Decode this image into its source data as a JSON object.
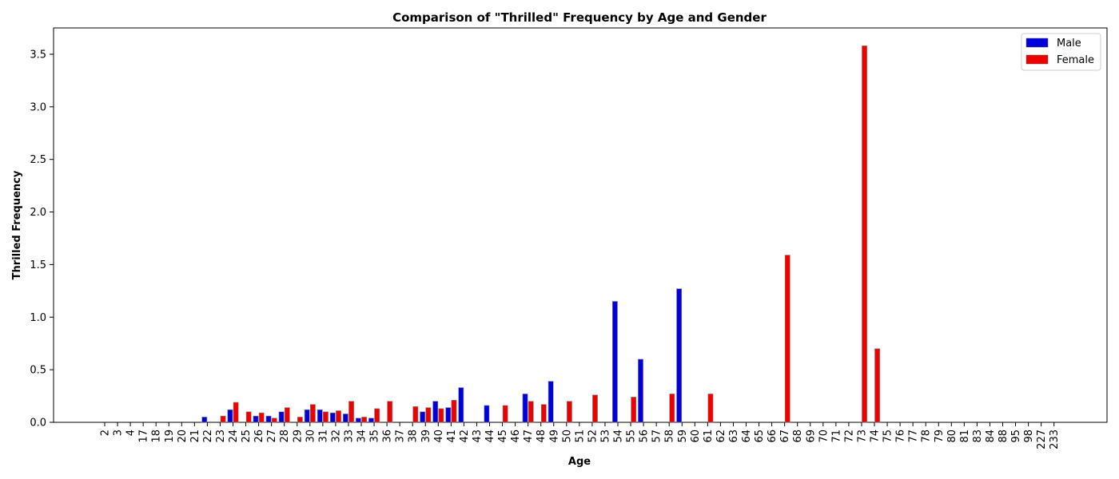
{
  "chart_data": {
    "type": "bar",
    "title": "Comparison of \"Thrilled\" Frequency by Age and Gender",
    "xlabel": "Age",
    "ylabel": "Thrilled Frequency",
    "ylim": [
      0,
      3.75
    ],
    "yticks": [
      "0.0",
      "0.5",
      "1.0",
      "1.5",
      "2.0",
      "2.5",
      "3.0",
      "3.5"
    ],
    "legend_position": "top-right",
    "categories": [
      "2",
      "3",
      "4",
      "17",
      "18",
      "19",
      "20",
      "21",
      "22",
      "23",
      "24",
      "25",
      "26",
      "27",
      "28",
      "29",
      "30",
      "31",
      "32",
      "33",
      "34",
      "35",
      "36",
      "37",
      "38",
      "39",
      "40",
      "41",
      "42",
      "43",
      "44",
      "45",
      "46",
      "47",
      "48",
      "49",
      "50",
      "51",
      "52",
      "53",
      "54",
      "55",
      "56",
      "57",
      "58",
      "59",
      "60",
      "61",
      "62",
      "63",
      "64",
      "65",
      "66",
      "67",
      "68",
      "69",
      "70",
      "71",
      "72",
      "73",
      "74",
      "75",
      "76",
      "77",
      "78",
      "79",
      "80",
      "81",
      "83",
      "84",
      "88",
      "95",
      "98",
      "227",
      "233"
    ],
    "series": [
      {
        "name": "Male",
        "color": "#0000dd",
        "values": [
          0,
          0,
          0,
          0,
          0,
          0,
          0,
          0,
          0.05,
          0,
          0.12,
          0,
          0.06,
          0.06,
          0.1,
          0,
          0.12,
          0.12,
          0.09,
          0.08,
          0.04,
          0.04,
          0,
          0,
          0,
          0.1,
          0.2,
          0.14,
          0.33,
          0,
          0.16,
          0,
          0,
          0.27,
          0,
          0.39,
          0,
          0,
          0,
          0,
          1.15,
          0,
          0.6,
          0,
          0,
          1.27,
          0,
          0,
          0,
          0,
          0,
          0,
          0,
          0,
          0,
          0,
          0,
          0,
          0,
          0,
          0,
          0,
          0,
          0,
          0,
          0,
          0,
          0,
          0,
          0,
          0,
          0,
          0,
          0,
          0
        ]
      },
      {
        "name": "Female",
        "color": "#ee0000",
        "values": [
          0,
          0,
          0,
          0,
          0,
          0,
          0,
          0,
          0,
          0.06,
          0.19,
          0.1,
          0.09,
          0.04,
          0.14,
          0.05,
          0.17,
          0.1,
          0.11,
          0.2,
          0.05,
          0.13,
          0.2,
          0,
          0.15,
          0.14,
          0.13,
          0.21,
          0,
          0,
          0,
          0.16,
          0,
          0.2,
          0.17,
          0,
          0.2,
          0,
          0.26,
          0,
          0,
          0.24,
          0,
          0,
          0.27,
          0,
          0,
          0.27,
          0,
          0,
          0,
          0,
          0,
          1.59,
          0,
          0,
          0,
          0,
          0,
          3.58,
          0.7,
          0,
          0,
          0,
          0,
          0,
          0,
          0,
          0,
          0,
          0,
          0,
          0,
          0,
          0
        ]
      }
    ]
  }
}
